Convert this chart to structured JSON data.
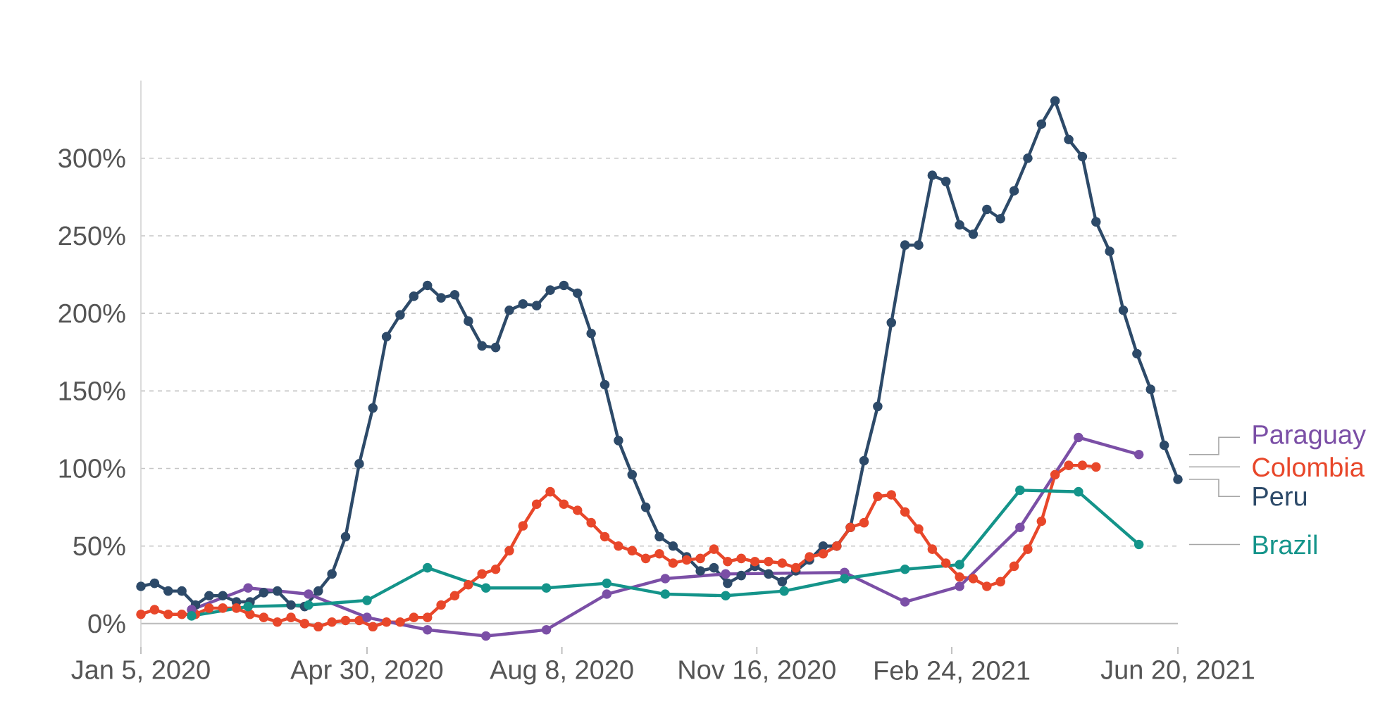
{
  "chart_data": {
    "type": "line",
    "xlim": [
      "2020-01-05",
      "2021-06-20"
    ],
    "xticks": [
      {
        "value": "2020-01-05",
        "label": "Jan 5, 2020"
      },
      {
        "value": "2020-04-30",
        "label": "Apr 30, 2020"
      },
      {
        "value": "2020-08-08",
        "label": "Aug 8, 2020"
      },
      {
        "value": "2020-11-16",
        "label": "Nov 16, 2020"
      },
      {
        "value": "2021-02-24",
        "label": "Feb 24, 2021"
      },
      {
        "value": "2021-06-20",
        "label": "Jun 20, 2021"
      }
    ],
    "ylim": [
      -15,
      350
    ],
    "yticks": [
      {
        "value": 0,
        "label": "0%"
      },
      {
        "value": 50,
        "label": "50%"
      },
      {
        "value": 100,
        "label": "100%"
      },
      {
        "value": 150,
        "label": "150%"
      },
      {
        "value": 200,
        "label": "200%"
      },
      {
        "value": 250,
        "label": "250%"
      },
      {
        "value": 300,
        "label": "300%"
      }
    ],
    "grid": "y",
    "legend": "right",
    "marker": "circle",
    "line_style": "solid",
    "series": [
      {
        "name": "Peru",
        "color": "#2d4a69",
        "x": [
          "2020-01-05",
          "2020-01-12",
          "2020-01-19",
          "2020-01-26",
          "2020-02-02",
          "2020-02-09",
          "2020-02-16",
          "2020-02-23",
          "2020-03-01",
          "2020-03-08",
          "2020-03-15",
          "2020-03-22",
          "2020-03-29",
          "2020-04-05",
          "2020-04-12",
          "2020-04-19",
          "2020-04-26",
          "2020-05-03",
          "2020-05-10",
          "2020-05-17",
          "2020-05-24",
          "2020-05-31",
          "2020-06-07",
          "2020-06-14",
          "2020-06-21",
          "2020-06-28",
          "2020-07-05",
          "2020-07-12",
          "2020-07-19",
          "2020-07-26",
          "2020-08-02",
          "2020-08-09",
          "2020-08-16",
          "2020-08-23",
          "2020-08-30",
          "2020-09-06",
          "2020-09-13",
          "2020-09-20",
          "2020-09-27",
          "2020-10-04",
          "2020-10-11",
          "2020-10-18",
          "2020-10-25",
          "2020-11-01",
          "2020-11-08",
          "2020-11-15",
          "2020-11-22",
          "2020-11-29",
          "2020-12-06",
          "2020-12-13",
          "2020-12-20",
          "2020-12-27",
          "2021-01-03",
          "2021-01-10",
          "2021-01-17",
          "2021-01-24",
          "2021-01-31",
          "2021-02-07",
          "2021-02-14",
          "2021-02-21",
          "2021-02-28",
          "2021-03-07",
          "2021-03-14",
          "2021-03-21",
          "2021-03-28",
          "2021-04-04",
          "2021-04-11",
          "2021-04-18",
          "2021-04-25",
          "2021-05-02",
          "2021-05-09",
          "2021-05-16",
          "2021-05-23",
          "2021-05-30",
          "2021-06-06",
          "2021-06-13",
          "2021-06-20"
        ],
        "values": [
          24,
          26,
          21,
          21,
          12,
          18,
          18,
          14,
          14,
          20,
          21,
          12,
          11,
          21,
          32,
          56,
          103,
          139,
          185,
          199,
          211,
          218,
          210,
          212,
          195,
          179,
          178,
          202,
          206,
          205,
          215,
          218,
          213,
          187,
          154,
          118,
          96,
          75,
          56,
          50,
          43,
          34,
          36,
          26,
          31,
          37,
          32,
          27,
          34,
          41,
          50,
          50,
          62,
          105,
          140,
          194,
          244,
          244,
          289,
          285,
          257,
          251,
          267,
          261,
          279,
          300,
          322,
          337,
          312,
          301,
          259,
          240,
          202,
          174,
          151,
          115,
          93
        ]
      },
      {
        "name": "Colombia",
        "color": "#e8472a",
        "x": [
          "2020-01-05",
          "2020-01-12",
          "2020-01-19",
          "2020-01-26",
          "2020-02-02",
          "2020-02-09",
          "2020-02-16",
          "2020-02-23",
          "2020-03-01",
          "2020-03-08",
          "2020-03-15",
          "2020-03-22",
          "2020-03-29",
          "2020-04-05",
          "2020-04-12",
          "2020-04-19",
          "2020-04-26",
          "2020-05-03",
          "2020-05-10",
          "2020-05-17",
          "2020-05-24",
          "2020-05-31",
          "2020-06-07",
          "2020-06-14",
          "2020-06-21",
          "2020-06-28",
          "2020-07-05",
          "2020-07-12",
          "2020-07-19",
          "2020-07-26",
          "2020-08-02",
          "2020-08-09",
          "2020-08-16",
          "2020-08-23",
          "2020-08-30",
          "2020-09-06",
          "2020-09-13",
          "2020-09-20",
          "2020-09-27",
          "2020-10-04",
          "2020-10-11",
          "2020-10-18",
          "2020-10-25",
          "2020-11-01",
          "2020-11-08",
          "2020-11-15",
          "2020-11-22",
          "2020-11-29",
          "2020-12-06",
          "2020-12-13",
          "2020-12-20",
          "2020-12-27",
          "2021-01-03",
          "2021-01-10",
          "2021-01-17",
          "2021-01-24",
          "2021-01-31",
          "2021-02-07",
          "2021-02-14",
          "2021-02-21",
          "2021-02-28",
          "2021-03-07",
          "2021-03-14",
          "2021-03-21",
          "2021-03-28",
          "2021-04-04",
          "2021-04-11",
          "2021-04-18",
          "2021-04-25",
          "2021-05-02",
          "2021-05-09"
        ],
        "values": [
          6,
          9,
          6,
          6,
          6,
          10,
          10,
          10,
          6,
          4,
          1,
          4,
          0,
          -2,
          1,
          2,
          2,
          -2,
          1,
          1,
          4,
          4,
          12,
          18,
          25,
          32,
          35,
          47,
          63,
          77,
          85,
          77,
          73,
          65,
          56,
          50,
          47,
          42,
          45,
          39,
          41,
          42,
          48,
          40,
          42,
          40,
          40,
          39,
          36,
          43,
          45,
          50,
          62,
          65,
          82,
          83,
          72,
          61,
          48,
          39,
          30,
          29,
          24,
          27,
          37,
          48,
          66,
          96,
          102,
          102,
          101
        ]
      },
      {
        "name": "Paraguay",
        "color": "#7b4fa6",
        "x": [
          "2020-01-31",
          "2020-02-29",
          "2020-03-31",
          "2020-04-30",
          "2020-05-31",
          "2020-06-30",
          "2020-07-31",
          "2020-08-31",
          "2020-09-30",
          "2020-10-31",
          "2020-12-31",
          "2021-01-31",
          "2021-02-28",
          "2021-03-31",
          "2021-04-30",
          "2021-05-31"
        ],
        "values": [
          9,
          23,
          19,
          4,
          -4,
          -8,
          -4,
          19,
          29,
          32,
          33,
          14,
          24,
          62,
          120,
          109
        ]
      },
      {
        "name": "Brazil",
        "color": "#14948a",
        "x": [
          "2020-01-31",
          "2020-02-29",
          "2020-03-31",
          "2020-04-30",
          "2020-05-31",
          "2020-06-30",
          "2020-07-31",
          "2020-08-31",
          "2020-09-30",
          "2020-10-31",
          "2020-11-30",
          "2020-12-31",
          "2021-01-31",
          "2021-02-28",
          "2021-03-31",
          "2021-04-30",
          "2021-05-31"
        ],
        "values": [
          5,
          11,
          12,
          15,
          36,
          23,
          23,
          26,
          19,
          18,
          21,
          29,
          35,
          38,
          86,
          85,
          51
        ]
      }
    ]
  }
}
